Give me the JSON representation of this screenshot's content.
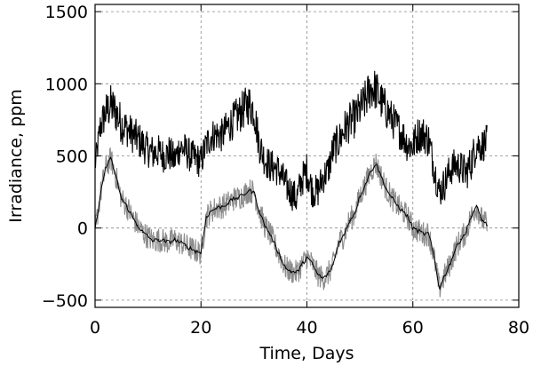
{
  "chart_data": {
    "type": "line",
    "title": "",
    "xlabel": "Time, Days",
    "ylabel": "Irradiance, ppm",
    "xlim": [
      0,
      80
    ],
    "ylim": [
      -550,
      1550
    ],
    "x_ticks": [
      0,
      20,
      40,
      60,
      80
    ],
    "y_ticks": [
      -500,
      0,
      500,
      1000,
      1500
    ],
    "x_tick_labels": [
      "0",
      "20",
      "40",
      "60",
      "80"
    ],
    "y_tick_labels": [
      "−500",
      "0",
      "500",
      "1000",
      "1500"
    ],
    "grid": true,
    "legend": "none",
    "series": [
      {
        "style": "noisy-black-band",
        "color": "#000000",
        "x": [
          0,
          1,
          2,
          3,
          4,
          5,
          6,
          7,
          8,
          9,
          10,
          11,
          12,
          13,
          14,
          15,
          16,
          17,
          18,
          19,
          20,
          21,
          22,
          23,
          24,
          25,
          26,
          27,
          28,
          29,
          30,
          31,
          32,
          33,
          34,
          35,
          36,
          37,
          38,
          39,
          40,
          41,
          42,
          43,
          44,
          45,
          46,
          47,
          48,
          49,
          50,
          51,
          52,
          53,
          54,
          55,
          56,
          57,
          58,
          59,
          60,
          61,
          62,
          63,
          64,
          65,
          66,
          67,
          68,
          69,
          70,
          71,
          72,
          73,
          74
        ],
        "values": [
          430,
          700,
          800,
          850,
          800,
          720,
          690,
          650,
          620,
          580,
          540,
          520,
          530,
          500,
          520,
          470,
          560,
          540,
          500,
          480,
          460,
          580,
          640,
          650,
          640,
          700,
          740,
          780,
          820,
          860,
          820,
          580,
          480,
          430,
          420,
          380,
          300,
          250,
          200,
          330,
          400,
          260,
          250,
          350,
          400,
          550,
          600,
          680,
          730,
          760,
          820,
          880,
          970,
          960,
          880,
          820,
          760,
          700,
          650,
          580,
          570,
          650,
          650,
          610,
          420,
          250,
          310,
          400,
          440,
          420,
          380,
          450,
          580,
          570,
          600
        ],
        "noise": [
          90,
          120,
          140,
          150,
          150,
          140,
          130,
          130,
          130,
          130,
          120,
          130,
          120,
          120,
          130,
          120,
          120,
          120,
          120,
          120,
          120,
          120,
          120,
          120,
          120,
          130,
          130,
          140,
          140,
          150,
          140,
          130,
          120,
          120,
          120,
          120,
          120,
          120,
          120,
          120,
          130,
          120,
          120,
          120,
          120,
          130,
          130,
          140,
          140,
          140,
          140,
          150,
          150,
          150,
          140,
          140,
          130,
          130,
          130,
          130,
          130,
          130,
          130,
          130,
          120,
          120,
          120,
          120,
          120,
          120,
          130,
          130,
          130,
          120,
          120
        ]
      },
      {
        "style": "line-with-gray-band",
        "color": "#000000",
        "band_color": "#8c8c8c",
        "x": [
          0,
          1,
          2,
          3,
          4,
          5,
          6,
          7,
          8,
          9,
          10,
          11,
          12,
          13,
          14,
          15,
          16,
          17,
          18,
          19,
          20,
          21,
          22,
          23,
          24,
          25,
          26,
          27,
          28,
          29,
          30,
          31,
          32,
          33,
          34,
          35,
          36,
          37,
          38,
          39,
          40,
          41,
          42,
          43,
          44,
          45,
          46,
          47,
          48,
          49,
          50,
          51,
          52,
          53,
          54,
          55,
          56,
          57,
          58,
          59,
          60,
          61,
          62,
          63,
          64,
          65,
          66,
          67,
          68,
          69,
          70,
          71,
          72,
          73,
          74
        ],
        "values": [
          -20,
          230,
          420,
          480,
          350,
          200,
          150,
          80,
          20,
          -30,
          -60,
          -90,
          -80,
          -90,
          -100,
          -80,
          -100,
          -120,
          -140,
          -160,
          -170,
          80,
          120,
          140,
          150,
          170,
          200,
          210,
          230,
          260,
          250,
          120,
          20,
          -40,
          -120,
          -200,
          -280,
          -300,
          -310,
          -260,
          -200,
          -250,
          -320,
          -350,
          -320,
          -250,
          -100,
          -50,
          50,
          100,
          220,
          300,
          390,
          450,
          360,
          270,
          210,
          160,
          120,
          80,
          0,
          -20,
          -40,
          -40,
          -200,
          -420,
          -330,
          -250,
          -150,
          -80,
          -30,
          80,
          150,
          60,
          20
        ],
        "band": 55
      }
    ]
  }
}
